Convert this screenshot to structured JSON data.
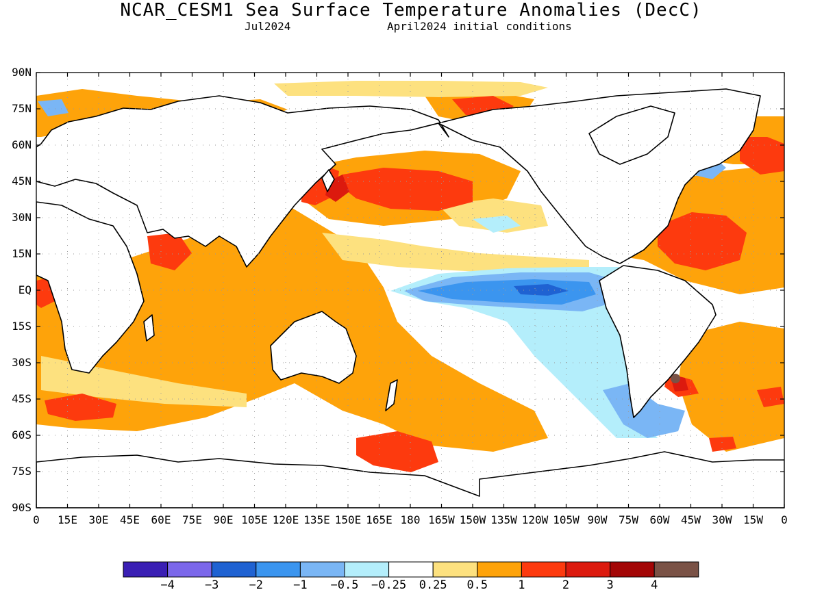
{
  "title": "NCAR_CESM1 Sea Surface Temperature Anomalies (DecC)",
  "subtitle_left": "Jul2024",
  "subtitle_right": "April2024 initial conditions",
  "lat_ticks": [
    "90N",
    "75N",
    "60N",
    "45N",
    "30N",
    "15N",
    "EQ",
    "15S",
    "30S",
    "45S",
    "60S",
    "75S",
    "90S"
  ],
  "lon_ticks": [
    "0",
    "15E",
    "30E",
    "45E",
    "60E",
    "75E",
    "90E",
    "105E",
    "120E",
    "135E",
    "150E",
    "165E",
    "180",
    "165W",
    "150W",
    "135W",
    "120W",
    "105W",
    "90W",
    "75W",
    "60W",
    "45W",
    "30W",
    "15W",
    "0"
  ],
  "colorbar": {
    "colors": [
      "#3a1fb4",
      "#7b67ea",
      "#1f62d2",
      "#3b95ef",
      "#7ab6f5",
      "#b4eefb",
      "#ffffff",
      "#fde17f",
      "#fea30a",
      "#fd3a0e",
      "#dc1a0e",
      "#a30606",
      "#7a5246"
    ],
    "labels": [
      "−4",
      "−3",
      "−2",
      "−1",
      "−0.5",
      "−0.25",
      "0.25",
      "0.5",
      "1",
      "2",
      "3",
      "4"
    ]
  },
  "colors": {
    "land": "#ffffff",
    "coast": "#000000",
    "grid": "#9a9a9a",
    "neutral_ocean": "#ffffff",
    "weak_warm": "#fde17f",
    "warm": "#fea30a",
    "strong_warm": "#fd3a0e",
    "very_warm": "#dc1a0e",
    "extreme_warm": "#a30606",
    "max_warm": "#7a5246",
    "weak_cool": "#b4eefb",
    "cool": "#7ab6f5",
    "strong_cool": "#3b95ef",
    "very_cool": "#1f62d2"
  }
}
